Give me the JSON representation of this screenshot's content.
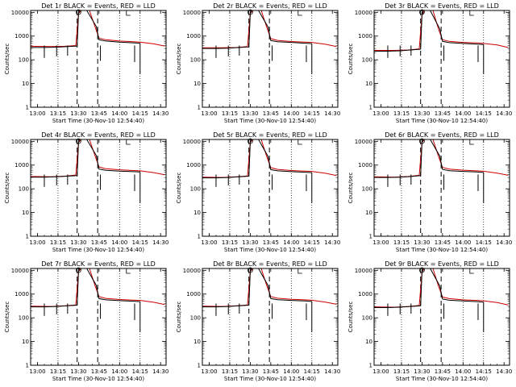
{
  "chart_data": {
    "type": "line",
    "ylog": true,
    "ylim": [
      1,
      12000
    ],
    "xlim": [
      "12:55",
      "14:34"
    ],
    "xlabel": "Start Time (30-Nov-10 12:54:40)",
    "ylabel": "Counts/sec",
    "x_tick_labels": [
      "13:00",
      "13:15",
      "13:30",
      "13:45",
      "14:00",
      "14:15",
      "14:30"
    ],
    "y_tick_labels": [
      "1",
      "10",
      "100",
      "1000",
      "10000"
    ],
    "grid": "dotted vertical lines at 13:15, 14:00 and 14:15",
    "markers": {
      "dashed_vertical_lines": [
        "13:29",
        "13:44"
      ],
      "circle_at": "13:30",
      "bracket_label": "L"
    },
    "series_colors": {
      "events": "#000000",
      "lld": "#cc0000"
    },
    "panels": [
      {
        "title": "Det 1r BLACK = Events, RED = LLD",
        "events": {
          "x": [
            "12:55",
            "13:05",
            "13:14",
            "13:22",
            "13:29",
            "13:30",
            "13:31",
            "13:36",
            "13:43",
            "13:45",
            "13:50",
            "14:00",
            "14:10",
            "14:15"
          ],
          "y": [
            330,
            330,
            340,
            360,
            380,
            9000,
            12000,
            12000,
            2500,
            700,
            620,
            560,
            520,
            500
          ]
        },
        "lld": {
          "x": [
            "12:55",
            "13:10",
            "13:20",
            "13:28",
            "13:30",
            "13:32",
            "13:38",
            "13:42",
            "13:45",
            "13:50",
            "14:00",
            "14:10",
            "14:15",
            "14:25",
            "14:33"
          ],
          "y": [
            370,
            360,
            370,
            400,
            9000,
            12000,
            12000,
            2500,
            820,
            700,
            620,
            580,
            560,
            470,
            380
          ]
        }
      },
      {
        "title": "Det 2r BLACK = Events, RED = LLD",
        "events": {
          "x": [
            "12:55",
            "13:05",
            "13:14",
            "13:22",
            "13:29",
            "13:30",
            "13:31",
            "13:36",
            "13:43",
            "13:45",
            "13:50",
            "14:00",
            "14:10",
            "14:15"
          ],
          "y": [
            300,
            300,
            310,
            330,
            350,
            9000,
            12000,
            12000,
            2400,
            650,
            580,
            540,
            500,
            480
          ]
        },
        "lld": {
          "x": [
            "12:55",
            "13:10",
            "13:20",
            "13:28",
            "13:30",
            "13:32",
            "13:38",
            "13:42",
            "13:45",
            "13:50",
            "14:00",
            "14:10",
            "14:15",
            "14:25",
            "14:33"
          ],
          "y": [
            320,
            320,
            330,
            360,
            9000,
            12000,
            12000,
            2400,
            780,
            660,
            590,
            560,
            540,
            450,
            360
          ]
        }
      },
      {
        "title": "Det 3r BLACK = Events, RED = LLD",
        "events": {
          "x": [
            "12:55",
            "13:05",
            "13:14",
            "13:22",
            "13:29",
            "13:30",
            "13:31",
            "13:36",
            "13:43",
            "13:45",
            "13:50",
            "14:00",
            "14:10",
            "14:15"
          ],
          "y": [
            230,
            230,
            240,
            260,
            280,
            8000,
            12000,
            12000,
            2000,
            600,
            530,
            490,
            460,
            440
          ]
        },
        "lld": {
          "x": [
            "12:55",
            "13:10",
            "13:20",
            "13:28",
            "13:30",
            "13:32",
            "13:38",
            "13:42",
            "13:45",
            "13:50",
            "14:00",
            "14:10",
            "14:15",
            "14:25",
            "14:33"
          ],
          "y": [
            250,
            250,
            260,
            290,
            8000,
            12000,
            12000,
            2000,
            700,
            600,
            540,
            510,
            490,
            420,
            330
          ]
        }
      },
      {
        "title": "Det 4r BLACK = Events, RED = LLD",
        "events": {
          "x": [
            "12:55",
            "13:05",
            "13:14",
            "13:22",
            "13:29",
            "13:30",
            "13:31",
            "13:36",
            "13:43",
            "13:45",
            "13:50",
            "14:00",
            "14:10",
            "14:15"
          ],
          "y": [
            310,
            310,
            320,
            340,
            360,
            9000,
            12000,
            12000,
            2500,
            680,
            600,
            560,
            530,
            510
          ]
        },
        "lld": {
          "x": [
            "12:55",
            "13:10",
            "13:20",
            "13:28",
            "13:30",
            "13:32",
            "13:38",
            "13:42",
            "13:45",
            "13:50",
            "14:00",
            "14:10",
            "14:15",
            "14:25",
            "14:33"
          ],
          "y": [
            330,
            320,
            340,
            380,
            9000,
            12000,
            12000,
            2500,
            830,
            700,
            630,
            590,
            570,
            480,
            390
          ]
        }
      },
      {
        "title": "Det 5r BLACK = Events, RED = LLD",
        "events": {
          "x": [
            "12:55",
            "13:05",
            "13:14",
            "13:22",
            "13:29",
            "13:30",
            "13:31",
            "13:36",
            "13:43",
            "13:45",
            "13:50",
            "14:00",
            "14:10",
            "14:15"
          ],
          "y": [
            290,
            290,
            300,
            320,
            340,
            9000,
            12000,
            12000,
            2300,
            640,
            570,
            530,
            500,
            480
          ]
        },
        "lld": {
          "x": [
            "12:55",
            "13:10",
            "13:20",
            "13:28",
            "13:30",
            "13:32",
            "13:38",
            "13:42",
            "13:45",
            "13:50",
            "14:00",
            "14:10",
            "14:15",
            "14:25",
            "14:33"
          ],
          "y": [
            310,
            300,
            320,
            350,
            9000,
            12000,
            12000,
            2300,
            780,
            660,
            590,
            560,
            540,
            450,
            360
          ]
        }
      },
      {
        "title": "Det 6r BLACK = Events, RED = LLD",
        "events": {
          "x": [
            "12:55",
            "13:05",
            "13:14",
            "13:22",
            "13:29",
            "13:30",
            "13:31",
            "13:36",
            "13:43",
            "13:45",
            "13:50",
            "14:00",
            "14:10",
            "14:15"
          ],
          "y": [
            300,
            300,
            310,
            330,
            360,
            9000,
            12000,
            12000,
            2400,
            660,
            580,
            540,
            510,
            490
          ]
        },
        "lld": {
          "x": [
            "12:55",
            "13:10",
            "13:20",
            "13:28",
            "13:30",
            "13:32",
            "13:38",
            "13:42",
            "13:45",
            "13:50",
            "14:00",
            "14:10",
            "14:15",
            "14:25",
            "14:33"
          ],
          "y": [
            320,
            310,
            330,
            370,
            9000,
            12000,
            12000,
            2400,
            800,
            680,
            610,
            570,
            550,
            460,
            370
          ]
        }
      },
      {
        "title": "Det 7r BLACK = Events, RED = LLD",
        "events": {
          "x": [
            "12:55",
            "13:05",
            "13:14",
            "13:22",
            "13:29",
            "13:30",
            "13:31",
            "13:36",
            "13:43",
            "13:45",
            "13:50",
            "14:00",
            "14:10",
            "14:15"
          ],
          "y": [
            290,
            290,
            300,
            320,
            340,
            9000,
            12000,
            12000,
            2300,
            640,
            570,
            530,
            500,
            480
          ]
        },
        "lld": {
          "x": [
            "12:55",
            "13:10",
            "13:20",
            "13:28",
            "13:30",
            "13:32",
            "13:38",
            "13:42",
            "13:45",
            "13:50",
            "14:00",
            "14:10",
            "14:15",
            "14:25",
            "14:33"
          ],
          "y": [
            310,
            300,
            320,
            350,
            9000,
            12000,
            12000,
            2300,
            780,
            660,
            590,
            560,
            540,
            450,
            360
          ]
        }
      },
      {
        "title": "Det 8r BLACK = Events, RED = LLD",
        "events": {
          "x": [
            "12:55",
            "13:05",
            "13:14",
            "13:22",
            "13:29",
            "13:30",
            "13:31",
            "13:36",
            "13:43",
            "13:45",
            "13:50",
            "14:00",
            "14:10",
            "14:15"
          ],
          "y": [
            290,
            290,
            300,
            320,
            340,
            9000,
            12000,
            12000,
            2300,
            650,
            580,
            540,
            510,
            490
          ]
        },
        "lld": {
          "x": [
            "12:55",
            "13:10",
            "13:20",
            "13:28",
            "13:30",
            "13:32",
            "13:38",
            "13:42",
            "13:45",
            "13:50",
            "14:00",
            "14:10",
            "14:15",
            "14:25",
            "14:33"
          ],
          "y": [
            310,
            300,
            320,
            350,
            9000,
            12000,
            12000,
            2300,
            790,
            670,
            600,
            570,
            550,
            460,
            370
          ]
        }
      },
      {
        "title": "Det 9r BLACK = Events, RED = LLD",
        "events": {
          "x": [
            "12:55",
            "13:05",
            "13:14",
            "13:22",
            "13:29",
            "13:30",
            "13:31",
            "13:36",
            "13:43",
            "13:45",
            "13:50",
            "14:00",
            "14:10",
            "14:15"
          ],
          "y": [
            270,
            270,
            280,
            300,
            320,
            8500,
            12000,
            12000,
            2200,
            620,
            550,
            510,
            480,
            460
          ]
        },
        "lld": {
          "x": [
            "12:55",
            "13:10",
            "13:20",
            "13:28",
            "13:30",
            "13:32",
            "13:38",
            "13:42",
            "13:45",
            "13:50",
            "14:00",
            "14:10",
            "14:15",
            "14:25",
            "14:33"
          ],
          "y": [
            290,
            280,
            300,
            330,
            8500,
            12000,
            12000,
            2200,
            750,
            640,
            570,
            540,
            520,
            440,
            350
          ]
        }
      }
    ]
  }
}
